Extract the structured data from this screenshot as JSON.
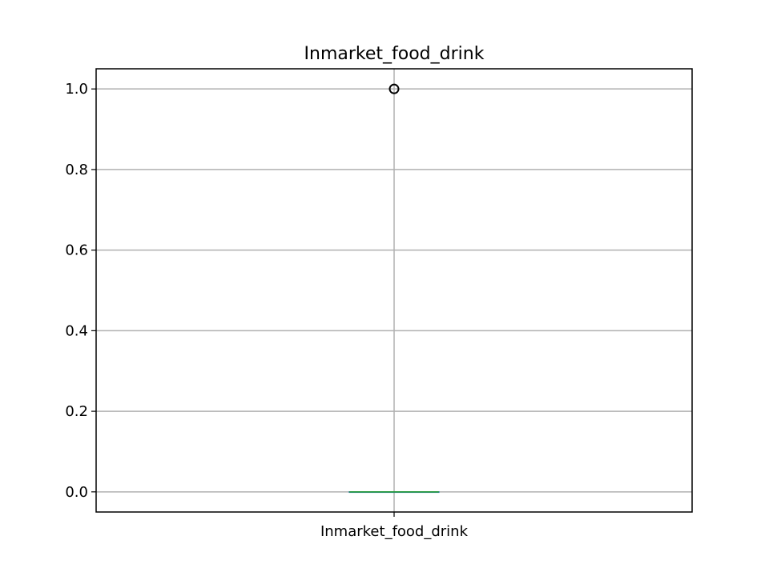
{
  "chart_data": {
    "type": "box",
    "title": "Inmarket_food_drink",
    "xlabel": "",
    "ylabel": "",
    "categories": [
      "Inmarket_food_drink"
    ],
    "x_tick_labels": [
      "Inmarket_food_drink"
    ],
    "y_ticks": [
      0.0,
      0.2,
      0.4,
      0.6,
      0.8,
      1.0
    ],
    "y_tick_labels": [
      "0.0",
      "0.2",
      "0.4",
      "0.6",
      "0.8",
      "1.0"
    ],
    "ylim": [
      -0.05,
      1.05
    ],
    "grid": true,
    "boxes": [
      {
        "name": "Inmarket_food_drink",
        "whislo": 0.0,
        "q1": 0.0,
        "median": 0.0,
        "q3": 0.0,
        "whishi": 0.0,
        "fliers": [
          1.0
        ]
      }
    ],
    "colors": {
      "median": "#2ca02c",
      "box": "#1f77b4",
      "grid": "#b0b0b0",
      "flier_edge": "#000000"
    }
  }
}
